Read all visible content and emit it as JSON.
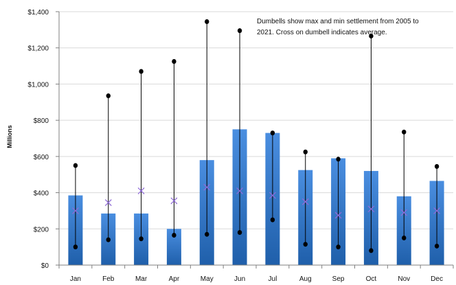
{
  "chart_data": {
    "type": "bar",
    "categories": [
      "Jan",
      "Feb",
      "Mar",
      "Apr",
      "May",
      "Jun",
      "Jul",
      "Aug",
      "Sep",
      "Oct",
      "Nov",
      "Dec"
    ],
    "values": [
      385,
      285,
      285,
      200,
      580,
      750,
      730,
      525,
      590,
      520,
      380,
      465
    ],
    "dumbbells": {
      "max": [
        550,
        935,
        1070,
        1125,
        1345,
        1295,
        730,
        625,
        585,
        1265,
        735,
        545
      ],
      "min": [
        100,
        140,
        145,
        165,
        170,
        180,
        250,
        115,
        100,
        80,
        150,
        105
      ],
      "average": [
        300,
        345,
        410,
        355,
        430,
        410,
        385,
        350,
        275,
        310,
        290,
        300
      ]
    },
    "ylabel": "Millions",
    "xlabel": "",
    "ylim": [
      0,
      1400
    ],
    "yticks": [
      "$0",
      "$200",
      "$400",
      "$600",
      "$800",
      "$1,000",
      "$1,200",
      "$1,400"
    ],
    "ytick_values": [
      0,
      200,
      400,
      600,
      800,
      1000,
      1200,
      1400
    ],
    "grid": true,
    "annotation": "Dumbells show max and min settlement from 2005 to 2021. Cross  on dumbell indicates average.",
    "annotation_lines": [
      "Dumbells show max and min settlement from 2005 to",
      "2021. Cross  on dumbell indicates average."
    ],
    "colors": {
      "bar_top": "#4a8ee0",
      "bar_bottom": "#1f5faa",
      "grid": "#d9d9d9",
      "axis": "#7f7f7f",
      "dumbbell": "#000000",
      "average_marker": "#8f6bd6"
    }
  }
}
